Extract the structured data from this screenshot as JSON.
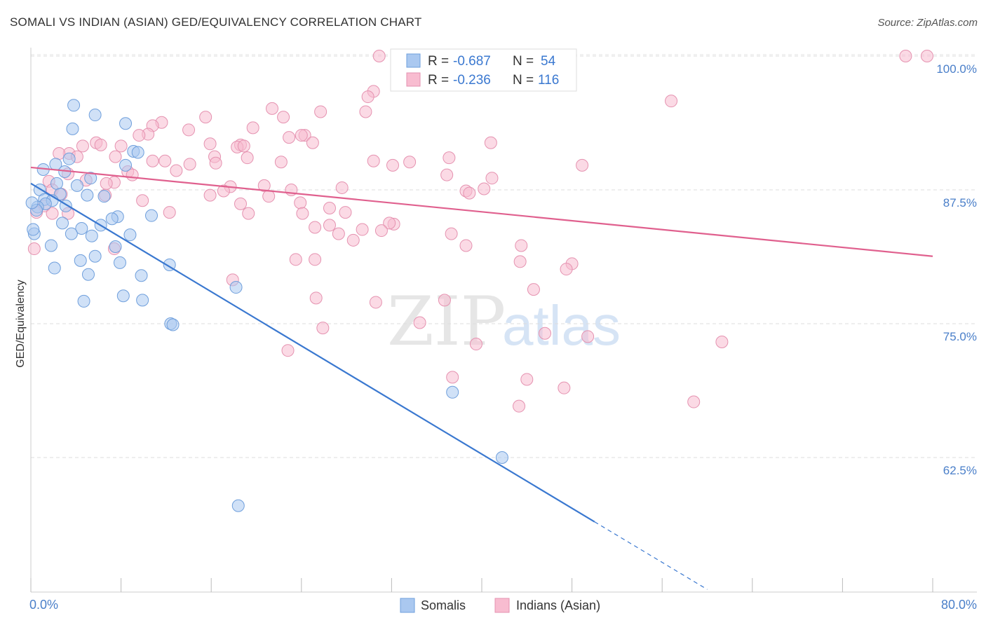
{
  "title": "SOMALI VS INDIAN (ASIAN) GED/EQUIVALENCY CORRELATION CHART",
  "source": "Source: ZipAtlas.com",
  "colors": {
    "blue": "#3a78d0",
    "pink": "#e0608e",
    "blue_fill": "#aac8f0",
    "pink_fill": "#f8bcd0",
    "axis_text": "#4a7fc9"
  },
  "legend": {
    "rows": [
      {
        "r_label": "R =",
        "r_value": "-0.687",
        "n_label": "N =",
        "n_value": "54"
      },
      {
        "r_label": "R =",
        "r_value": "-0.236",
        "n_label": "N =",
        "n_value": "116"
      }
    ]
  },
  "bottom_legend": [
    "Somalis",
    "Indians (Asian)"
  ],
  "watermark": {
    "part1": "ZIP",
    "part2": "atlas"
  },
  "chart_data": {
    "type": "scatter",
    "title": "SOMALI VS INDIAN (ASIAN) GED/EQUIVALENCY CORRELATION CHART",
    "xlabel": "",
    "ylabel": "GED/Equivalency",
    "xlim": [
      0,
      80
    ],
    "ylim": [
      50,
      102
    ],
    "x_tick_labels": [
      "0.0%",
      "80.0%"
    ],
    "y_ticks": [
      62.5,
      75.0,
      87.5,
      100.0
    ],
    "y_tick_labels": [
      "62.5%",
      "75.0%",
      "87.5%",
      "100.0%"
    ],
    "series": [
      {
        "name": "Somalis",
        "color": "#3a78d0",
        "r": -0.687,
        "n": 54,
        "trend": {
          "x0": 0,
          "y0": 88.1,
          "x1": 50,
          "y1": 56.5,
          "dash_to_x": 60
        },
        "points": [
          [
            3.8,
            95.4
          ],
          [
            5.7,
            94.5
          ],
          [
            8.4,
            93.7
          ],
          [
            3.7,
            93.2
          ],
          [
            9.1,
            91.1
          ],
          [
            3.4,
            90.4
          ],
          [
            2.2,
            89.9
          ],
          [
            8.4,
            89.8
          ],
          [
            1.1,
            89.4
          ],
          [
            3.0,
            89.2
          ],
          [
            5.3,
            88.6
          ],
          [
            2.3,
            88.1
          ],
          [
            4.1,
            87.9
          ],
          [
            0.8,
            87.5
          ],
          [
            2.6,
            87.1
          ],
          [
            6.5,
            86.9
          ],
          [
            5.0,
            87.0
          ],
          [
            1.2,
            86.6
          ],
          [
            1.9,
            86.5
          ],
          [
            1.3,
            86.2
          ],
          [
            3.1,
            86.0
          ],
          [
            0.6,
            85.9
          ],
          [
            0.5,
            85.6
          ],
          [
            10.7,
            85.1
          ],
          [
            7.7,
            85.0
          ],
          [
            7.2,
            84.8
          ],
          [
            2.8,
            84.4
          ],
          [
            6.2,
            84.2
          ],
          [
            4.5,
            83.9
          ],
          [
            3.6,
            83.4
          ],
          [
            8.8,
            83.3
          ],
          [
            5.4,
            83.2
          ],
          [
            0.3,
            83.4
          ],
          [
            1.8,
            82.3
          ],
          [
            7.5,
            82.2
          ],
          [
            5.7,
            81.3
          ],
          [
            4.4,
            80.9
          ],
          [
            7.9,
            80.7
          ],
          [
            12.3,
            80.5
          ],
          [
            2.1,
            80.2
          ],
          [
            5.1,
            79.6
          ],
          [
            9.8,
            79.5
          ],
          [
            18.2,
            78.4
          ],
          [
            8.2,
            77.6
          ],
          [
            9.9,
            77.2
          ],
          [
            4.7,
            77.1
          ],
          [
            12.4,
            75.0
          ],
          [
            12.6,
            74.9
          ],
          [
            37.4,
            68.6
          ],
          [
            41.8,
            62.5
          ],
          [
            18.4,
            58.0
          ],
          [
            0.1,
            86.3
          ],
          [
            0.2,
            83.8
          ],
          [
            9.5,
            91.0
          ]
        ]
      },
      {
        "name": "Indians (Asian)",
        "color": "#e0608e",
        "r": -0.236,
        "n": 116,
        "trend": {
          "x0": 0,
          "y0": 89.6,
          "x1": 80,
          "y1": 81.3
        },
        "points": [
          [
            30.9,
            100.0
          ],
          [
            46.1,
            100.0
          ],
          [
            46.4,
            100.0
          ],
          [
            77.6,
            100.0
          ],
          [
            79.5,
            100.0
          ],
          [
            30.4,
            96.7
          ],
          [
            29.9,
            96.2
          ],
          [
            56.8,
            95.8
          ],
          [
            21.4,
            95.1
          ],
          [
            25.7,
            94.8
          ],
          [
            29.7,
            94.8
          ],
          [
            22.4,
            94.3
          ],
          [
            15.5,
            94.3
          ],
          [
            11.6,
            93.8
          ],
          [
            10.8,
            93.5
          ],
          [
            19.7,
            93.3
          ],
          [
            14.0,
            93.1
          ],
          [
            24.3,
            92.6
          ],
          [
            24.0,
            92.6
          ],
          [
            10.4,
            92.7
          ],
          [
            9.6,
            92.6
          ],
          [
            22.9,
            92.4
          ],
          [
            25.0,
            91.9
          ],
          [
            5.8,
            91.9
          ],
          [
            40.8,
            91.9
          ],
          [
            15.9,
            91.8
          ],
          [
            18.6,
            91.7
          ],
          [
            6.2,
            91.7
          ],
          [
            4.6,
            91.6
          ],
          [
            8.0,
            91.6
          ],
          [
            18.3,
            91.5
          ],
          [
            18.9,
            91.6
          ],
          [
            3.4,
            90.9
          ],
          [
            2.5,
            90.9
          ],
          [
            4.1,
            90.6
          ],
          [
            7.5,
            90.6
          ],
          [
            16.3,
            90.6
          ],
          [
            19.2,
            90.5
          ],
          [
            37.1,
            90.5
          ],
          [
            30.4,
            90.2
          ],
          [
            10.8,
            90.2
          ],
          [
            11.9,
            90.2
          ],
          [
            22.2,
            90.1
          ],
          [
            33.6,
            90.1
          ],
          [
            48.9,
            89.8
          ],
          [
            16.4,
            90.0
          ],
          [
            14.1,
            89.9
          ],
          [
            32.1,
            89.8
          ],
          [
            12.9,
            89.3
          ],
          [
            8.6,
            89.2
          ],
          [
            3.3,
            89.0
          ],
          [
            36.9,
            88.9
          ],
          [
            9.0,
            88.9
          ],
          [
            40.9,
            88.6
          ],
          [
            4.9,
            88.4
          ],
          [
            1.6,
            88.3
          ],
          [
            7.4,
            88.2
          ],
          [
            6.7,
            88.1
          ],
          [
            20.7,
            87.9
          ],
          [
            27.6,
            87.7
          ],
          [
            17.7,
            87.8
          ],
          [
            1.9,
            87.5
          ],
          [
            40.2,
            87.6
          ],
          [
            23.1,
            87.5
          ],
          [
            38.6,
            87.4
          ],
          [
            17.1,
            87.4
          ],
          [
            38.9,
            87.2
          ],
          [
            2.7,
            87.1
          ],
          [
            15.9,
            87.0
          ],
          [
            21.1,
            86.9
          ],
          [
            6.6,
            87.0
          ],
          [
            9.9,
            86.5
          ],
          [
            23.9,
            86.3
          ],
          [
            18.6,
            86.2
          ],
          [
            1.2,
            86.0
          ],
          [
            26.5,
            85.8
          ],
          [
            19.3,
            85.3
          ],
          [
            12.3,
            85.4
          ],
          [
            24.1,
            85.3
          ],
          [
            27.9,
            85.4
          ],
          [
            3.3,
            85.3
          ],
          [
            1.9,
            85.3
          ],
          [
            0.5,
            85.4
          ],
          [
            32.2,
            84.3
          ],
          [
            31.8,
            84.4
          ],
          [
            26.5,
            84.2
          ],
          [
            25.2,
            84.0
          ],
          [
            29.4,
            83.8
          ],
          [
            31.1,
            83.7
          ],
          [
            27.3,
            83.4
          ],
          [
            37.3,
            83.4
          ],
          [
            28.6,
            82.8
          ],
          [
            38.6,
            82.3
          ],
          [
            43.5,
            82.3
          ],
          [
            7.4,
            82.0
          ],
          [
            0.3,
            82.0
          ],
          [
            25.2,
            81.0
          ],
          [
            23.5,
            81.0
          ],
          [
            43.4,
            80.8
          ],
          [
            48.0,
            80.6
          ],
          [
            47.5,
            80.1
          ],
          [
            17.9,
            79.1
          ],
          [
            44.6,
            78.2
          ],
          [
            25.3,
            77.4
          ],
          [
            30.6,
            77.0
          ],
          [
            36.7,
            77.2
          ],
          [
            34.5,
            75.1
          ],
          [
            25.9,
            74.6
          ],
          [
            45.6,
            74.1
          ],
          [
            49.4,
            73.8
          ],
          [
            61.3,
            73.3
          ],
          [
            39.5,
            73.1
          ],
          [
            22.8,
            72.5
          ],
          [
            37.4,
            70.0
          ],
          [
            44.0,
            69.8
          ],
          [
            47.3,
            69.0
          ],
          [
            58.8,
            67.7
          ],
          [
            43.3,
            67.3
          ]
        ]
      }
    ]
  }
}
